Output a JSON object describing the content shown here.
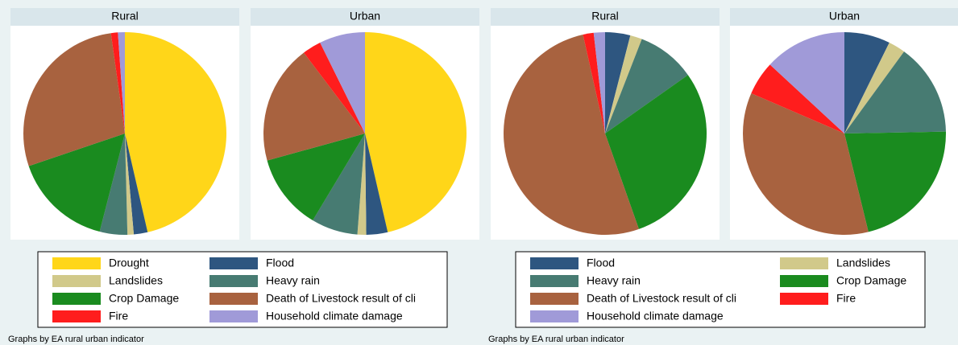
{
  "chart_data": [
    {
      "type": "pie",
      "categories": [
        "Drought",
        "Flood",
        "Landslides",
        "Heavy rain",
        "Crop Damage",
        "Death of Livestock result of cli",
        "Fire",
        "Household climate damage"
      ],
      "colors": [
        "#ffd619",
        "#2e5680",
        "#d1c98a",
        "#477b72",
        "#1a8b1f",
        "#a8623f",
        "#ff1d1d",
        "#a09ad8"
      ],
      "panels": [
        {
          "title": "Rural",
          "values": [
            46.4,
            2.2,
            1.0,
            4.4,
            15.8,
            28.0,
            1.1,
            1.1
          ]
        },
        {
          "title": "Urban",
          "values": [
            46.4,
            3.4,
            1.4,
            7.4,
            12.1,
            19.0,
            3.0,
            7.3
          ]
        }
      ],
      "note": "Graphs by EA rural urban indicator"
    },
    {
      "type": "pie",
      "categories": [
        "Flood",
        "Landslides",
        "Heavy rain",
        "Crop Damage",
        "Death of Livestock result of cli",
        "Fire",
        "Household climate damage"
      ],
      "colors": [
        "#2e5680",
        "#d1c98a",
        "#477b72",
        "#1a8b1f",
        "#a8623f",
        "#ff1d1d",
        "#a09ad8"
      ],
      "panels": [
        {
          "title": "Rural",
          "values": [
            4.0,
            1.9,
            9.3,
            29.4,
            51.9,
            1.7,
            1.8
          ]
        },
        {
          "title": "Urban",
          "values": [
            7.3,
            2.7,
            14.7,
            21.5,
            35.3,
            5.4,
            13.1
          ]
        }
      ],
      "note": "Graphs by EA rural urban indicator"
    }
  ]
}
